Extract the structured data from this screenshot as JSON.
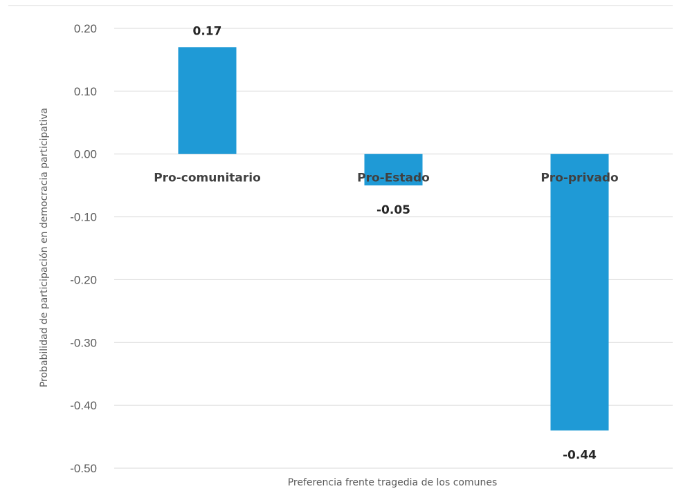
{
  "chart_data": {
    "type": "bar",
    "title": "",
    "xlabel": "Preferencia frente tragedia de los comunes",
    "ylabel": "Probabilidad de participación en democracia participativa",
    "categories": [
      "Pro-comunitario",
      "Pro-Estado",
      "Pro-privado"
    ],
    "values": [
      0.17,
      -0.05,
      -0.44
    ],
    "data_labels": [
      "0.17",
      "-0.05",
      "-0.44"
    ],
    "ylim": [
      -0.5,
      0.2
    ],
    "yticks": [
      0.2,
      0.1,
      0.0,
      -0.1,
      -0.2,
      -0.3,
      -0.4,
      -0.5
    ],
    "ytick_labels": [
      "0.20",
      "0.10",
      "0.00",
      "-0.10",
      "-0.20",
      "-0.30",
      "-0.40",
      "-0.50"
    ],
    "grid": true,
    "bar_color": "#1f9ad6",
    "grid_color": "#d9d9d9"
  }
}
